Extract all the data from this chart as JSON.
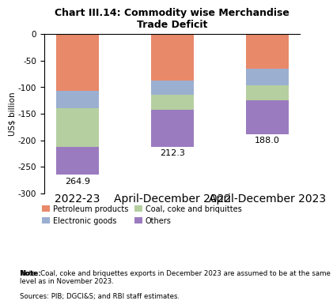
{
  "title": "Chart III.14: Commodity wise Merchandise\nTrade Deficit",
  "categories": [
    "2022-23",
    "April-December 2022",
    "April-December 2023"
  ],
  "totals": [
    264.9,
    212.3,
    188.0
  ],
  "segments": {
    "Petroleum products": [
      -107.0,
      -87.0,
      -65.0
    ],
    "Electronic goods": [
      -33.0,
      -28.0,
      -32.0
    ],
    "Coal, coke and briquittes": [
      -72.0,
      -27.0,
      -28.0
    ],
    "Others": [
      -52.9,
      -70.3,
      -63.0
    ]
  },
  "colors": {
    "Petroleum products": "#E8896A",
    "Electronic goods": "#9BAFD1",
    "Coal, coke and briquittes": "#B5CFA0",
    "Others": "#9B7BBF"
  },
  "ylabel": "US$ billion",
  "ylim": [
    -300,
    0
  ],
  "yticks": [
    0,
    -50,
    -100,
    -150,
    -200,
    -250,
    -300
  ],
  "note1": "Note: Coal, coke and briquettes exports in December 2023 are assumed to be at the same level as in November 2023.",
  "note2": "Sources: PIB; DGCI&S; and RBI staff estimates.",
  "bar_width": 0.45,
  "background_color": "#FFFFFF",
  "border_color": "#000000"
}
